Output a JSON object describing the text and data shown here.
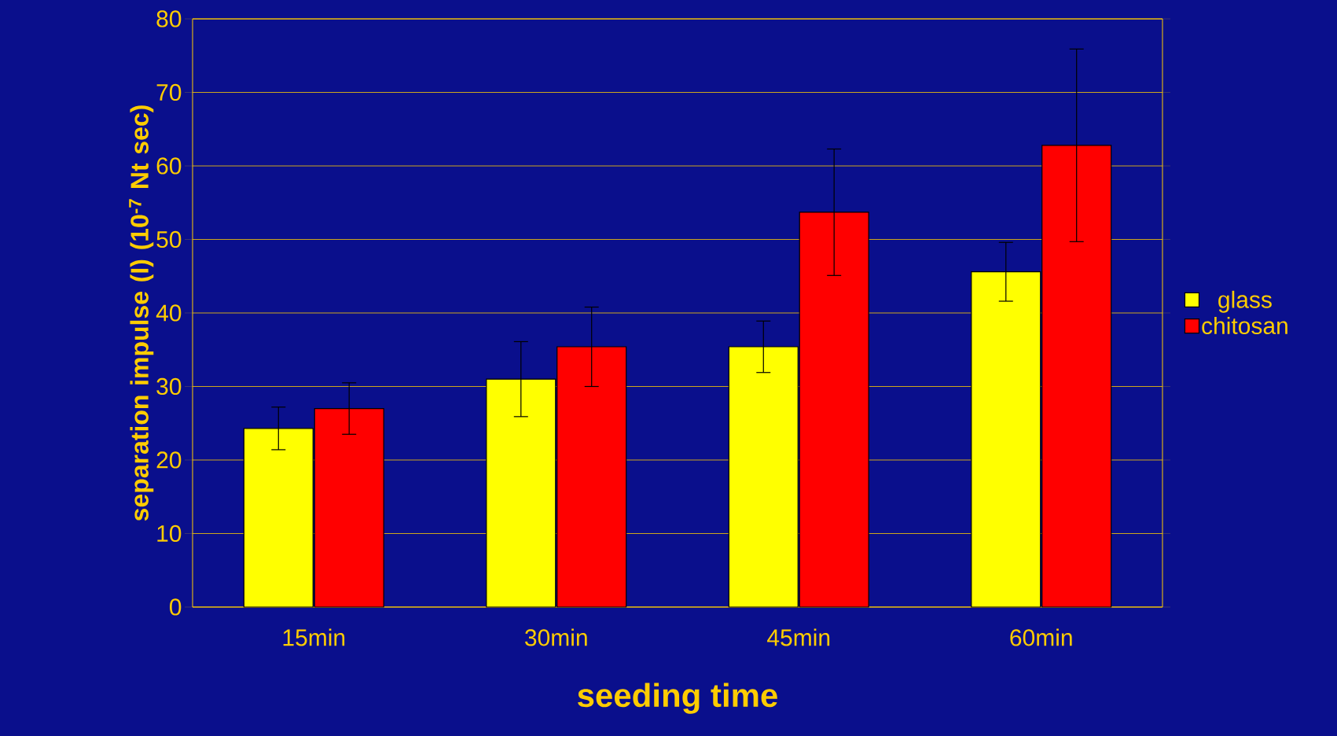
{
  "chart_data": {
    "type": "bar",
    "xlabel": "seeding time",
    "ylabel": "separation impulse (I) (10$^{-7}$ Nt sec)",
    "categories": [
      "15min",
      "30min",
      "45min",
      "60min"
    ],
    "series": [
      {
        "name": "glass",
        "color": "#ffff00",
        "values": [
          24.3,
          31.0,
          35.4,
          45.6
        ],
        "errors": [
          2.9,
          5.1,
          3.5,
          4.0
        ]
      },
      {
        "name": "chitosan",
        "color": "#ff0000",
        "values": [
          27.0,
          35.4,
          53.7,
          62.8
        ],
        "errors": [
          3.5,
          5.4,
          8.6,
          13.1
        ]
      }
    ],
    "ylim": [
      0,
      80
    ],
    "yticks": [
      0,
      10,
      20,
      30,
      40,
      50,
      60,
      70,
      80
    ],
    "grid": "y",
    "legend": "right"
  }
}
